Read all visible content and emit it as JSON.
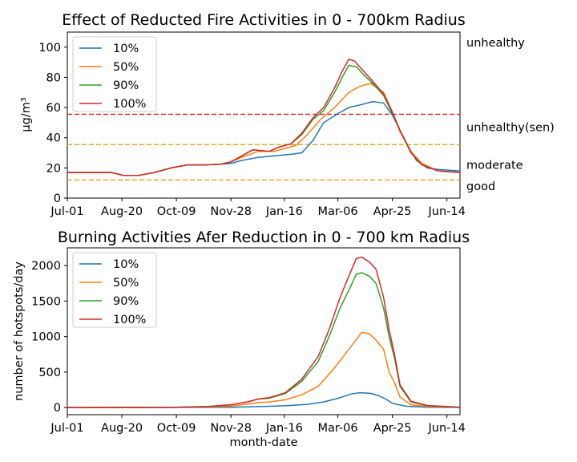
{
  "chart_data": [
    {
      "type": "line",
      "title": "Effect of Reducted Fire Activities in 0 - 700km Radius",
      "xlabel": "",
      "ylabel": "μg/m³",
      "xlim": [
        0,
        360
      ],
      "ylim": [
        0,
        110
      ],
      "x_ticks": [
        {
          "label": "Jul-01",
          "x": 0
        },
        {
          "label": "Aug-20",
          "x": 50
        },
        {
          "label": "Oct-09",
          "x": 100
        },
        {
          "label": "Nov-28",
          "x": 150
        },
        {
          "label": "Jan-16",
          "x": 199
        },
        {
          "label": "Mar-06",
          "x": 248
        },
        {
          "label": "Apr-25",
          "x": 298
        },
        {
          "label": "Jun-14",
          "x": 348
        }
      ],
      "y_ticks": [
        0,
        20,
        40,
        60,
        80,
        100
      ],
      "grid": false,
      "legend_position": "upper-left",
      "thresholds": [
        {
          "label": "good",
          "y": 12,
          "color": "#e6a82b",
          "label_y": 8
        },
        {
          "label": "moderate",
          "y": 35.5,
          "color": "#e6a82b",
          "label_y": 22
        },
        {
          "label": "unhealthy(sen)",
          "y": 55.5,
          "color": "#d62728",
          "label_y": 47
        },
        {
          "label": "unhealthy",
          "y": null,
          "color": "#d62728",
          "label_y": 103
        }
      ],
      "series": [
        {
          "name": "10%",
          "color": "#1f77b4",
          "points": [
            [
              0,
              17
            ],
            [
              20,
              17
            ],
            [
              40,
              17
            ],
            [
              52,
              15
            ],
            [
              65,
              15
            ],
            [
              80,
              17
            ],
            [
              95,
              20
            ],
            [
              110,
              22
            ],
            [
              125,
              22
            ],
            [
              140,
              22.5
            ],
            [
              150,
              23
            ],
            [
              160,
              25
            ],
            [
              175,
              27
            ],
            [
              190,
              28
            ],
            [
              205,
              29
            ],
            [
              215,
              30
            ],
            [
              225,
              38
            ],
            [
              235,
              50
            ],
            [
              248,
              56
            ],
            [
              258,
              60
            ],
            [
              270,
              62
            ],
            [
              280,
              64
            ],
            [
              290,
              63
            ],
            [
              298,
              55
            ],
            [
              305,
              45
            ],
            [
              312,
              35
            ],
            [
              320,
              25
            ],
            [
              330,
              20
            ],
            [
              340,
              19
            ],
            [
              350,
              18.5
            ],
            [
              360,
              18
            ]
          ]
        },
        {
          "name": "50%",
          "color": "#ff7f0e",
          "points": [
            [
              0,
              17
            ],
            [
              20,
              17
            ],
            [
              40,
              17
            ],
            [
              52,
              15
            ],
            [
              65,
              15
            ],
            [
              80,
              17
            ],
            [
              95,
              20
            ],
            [
              110,
              22
            ],
            [
              125,
              22
            ],
            [
              140,
              22.5
            ],
            [
              150,
              24
            ],
            [
              160,
              27
            ],
            [
              175,
              31
            ],
            [
              190,
              31
            ],
            [
              200,
              33
            ],
            [
              210,
              35
            ],
            [
              220,
              42
            ],
            [
              232,
              52
            ],
            [
              245,
              60
            ],
            [
              258,
              70
            ],
            [
              268,
              74
            ],
            [
              278,
              76
            ],
            [
              290,
              70
            ],
            [
              298,
              57
            ],
            [
              305,
              44
            ],
            [
              315,
              31
            ],
            [
              325,
              23
            ],
            [
              340,
              18
            ],
            [
              360,
              17
            ]
          ]
        },
        {
          "name": "90%",
          "color": "#2ca02c",
          "points": [
            [
              0,
              17
            ],
            [
              20,
              17
            ],
            [
              40,
              17
            ],
            [
              52,
              15
            ],
            [
              65,
              15
            ],
            [
              80,
              17
            ],
            [
              95,
              20
            ],
            [
              110,
              22
            ],
            [
              125,
              22
            ],
            [
              140,
              22.5
            ],
            [
              150,
              24
            ],
            [
              160,
              28
            ],
            [
              170,
              32
            ],
            [
              185,
              31
            ],
            [
              195,
              34
            ],
            [
              205,
              36
            ],
            [
              215,
              42
            ],
            [
              225,
              52
            ],
            [
              235,
              58
            ],
            [
              245,
              70
            ],
            [
              252,
              80
            ],
            [
              258,
              88
            ],
            [
              265,
              87
            ],
            [
              270,
              83
            ],
            [
              280,
              76
            ],
            [
              290,
              68
            ],
            [
              298,
              56
            ],
            [
              305,
              45
            ],
            [
              315,
              30
            ],
            [
              325,
              22
            ],
            [
              340,
              18
            ],
            [
              360,
              17
            ]
          ]
        },
        {
          "name": "100%",
          "color": "#d62728",
          "points": [
            [
              0,
              17
            ],
            [
              20,
              17
            ],
            [
              40,
              17
            ],
            [
              52,
              15
            ],
            [
              65,
              15
            ],
            [
              80,
              17
            ],
            [
              95,
              20
            ],
            [
              110,
              22
            ],
            [
              125,
              22
            ],
            [
              140,
              22.5
            ],
            [
              150,
              24
            ],
            [
              160,
              28
            ],
            [
              170,
              32
            ],
            [
              185,
              31
            ],
            [
              195,
              34
            ],
            [
              205,
              36
            ],
            [
              215,
              43
            ],
            [
              225,
              53
            ],
            [
              235,
              60
            ],
            [
              245,
              73
            ],
            [
              252,
              84
            ],
            [
              258,
              92
            ],
            [
              263,
              91
            ],
            [
              268,
              87
            ],
            [
              278,
              79
            ],
            [
              290,
              69
            ],
            [
              298,
              57
            ],
            [
              305,
              45
            ],
            [
              315,
              30
            ],
            [
              325,
              22
            ],
            [
              340,
              18
            ],
            [
              360,
              17
            ]
          ]
        }
      ]
    },
    {
      "type": "line",
      "title": "Burning Activities Afer Reduction in 0 - 700 km Radius",
      "xlabel": "month-date",
      "ylabel": "number of hotspots/day",
      "xlim": [
        0,
        360
      ],
      "ylim": [
        -100,
        2250
      ],
      "x_ticks": [
        {
          "label": "Jul-01",
          "x": 0
        },
        {
          "label": "Aug-20",
          "x": 50
        },
        {
          "label": "Oct-09",
          "x": 100
        },
        {
          "label": "Nov-28",
          "x": 150
        },
        {
          "label": "Jan-16",
          "x": 199
        },
        {
          "label": "Mar-06",
          "x": 248
        },
        {
          "label": "Apr-25",
          "x": 298
        },
        {
          "label": "Jun-14",
          "x": 348
        }
      ],
      "y_ticks": [
        0,
        500,
        1000,
        1500,
        2000
      ],
      "grid": false,
      "legend_position": "upper-left",
      "series": [
        {
          "name": "10%",
          "color": "#1f77b4",
          "points": [
            [
              0,
              0
            ],
            [
              100,
              2
            ],
            [
              150,
              5
            ],
            [
              180,
              15
            ],
            [
              200,
              25
            ],
            [
              220,
              45
            ],
            [
              235,
              80
            ],
            [
              248,
              130
            ],
            [
              260,
              190
            ],
            [
              268,
              210
            ],
            [
              278,
              200
            ],
            [
              285,
              170
            ],
            [
              292,
              120
            ],
            [
              298,
              60
            ],
            [
              310,
              20
            ],
            [
              330,
              5
            ],
            [
              360,
              2
            ]
          ]
        },
        {
          "name": "50%",
          "color": "#ff7f0e",
          "points": [
            [
              0,
              0
            ],
            [
              100,
              5
            ],
            [
              130,
              10
            ],
            [
              150,
              20
            ],
            [
              165,
              50
            ],
            [
              175,
              70
            ],
            [
              185,
              80
            ],
            [
              200,
              110
            ],
            [
              215,
              180
            ],
            [
              230,
              300
            ],
            [
              245,
              560
            ],
            [
              255,
              760
            ],
            [
              265,
              960
            ],
            [
              270,
              1060
            ],
            [
              277,
              1040
            ],
            [
              283,
              950
            ],
            [
              290,
              820
            ],
            [
              295,
              500
            ],
            [
              300,
              350
            ],
            [
              305,
              150
            ],
            [
              315,
              40
            ],
            [
              330,
              15
            ],
            [
              360,
              5
            ]
          ]
        },
        {
          "name": "90%",
          "color": "#2ca02c",
          "points": [
            [
              0,
              0
            ],
            [
              100,
              5
            ],
            [
              130,
              15
            ],
            [
              150,
              40
            ],
            [
              165,
              80
            ],
            [
              175,
              120
            ],
            [
              185,
              130
            ],
            [
              200,
              200
            ],
            [
              215,
              370
            ],
            [
              230,
              650
            ],
            [
              240,
              1000
            ],
            [
              250,
              1400
            ],
            [
              258,
              1650
            ],
            [
              265,
              1880
            ],
            [
              270,
              1900
            ],
            [
              277,
              1850
            ],
            [
              283,
              1750
            ],
            [
              290,
              1400
            ],
            [
              295,
              1000
            ],
            [
              300,
              700
            ],
            [
              305,
              300
            ],
            [
              315,
              80
            ],
            [
              330,
              25
            ],
            [
              360,
              5
            ]
          ]
        },
        {
          "name": "100%",
          "color": "#d62728",
          "points": [
            [
              0,
              0
            ],
            [
              100,
              5
            ],
            [
              130,
              15
            ],
            [
              150,
              40
            ],
            [
              165,
              80
            ],
            [
              175,
              120
            ],
            [
              185,
              140
            ],
            [
              200,
              210
            ],
            [
              215,
              400
            ],
            [
              230,
              720
            ],
            [
              240,
              1100
            ],
            [
              250,
              1550
            ],
            [
              258,
              1850
            ],
            [
              265,
              2100
            ],
            [
              270,
              2120
            ],
            [
              277,
              2050
            ],
            [
              283,
              1950
            ],
            [
              290,
              1550
            ],
            [
              295,
              1100
            ],
            [
              300,
              750
            ],
            [
              305,
              320
            ],
            [
              315,
              90
            ],
            [
              330,
              30
            ],
            [
              360,
              5
            ]
          ]
        }
      ]
    }
  ]
}
